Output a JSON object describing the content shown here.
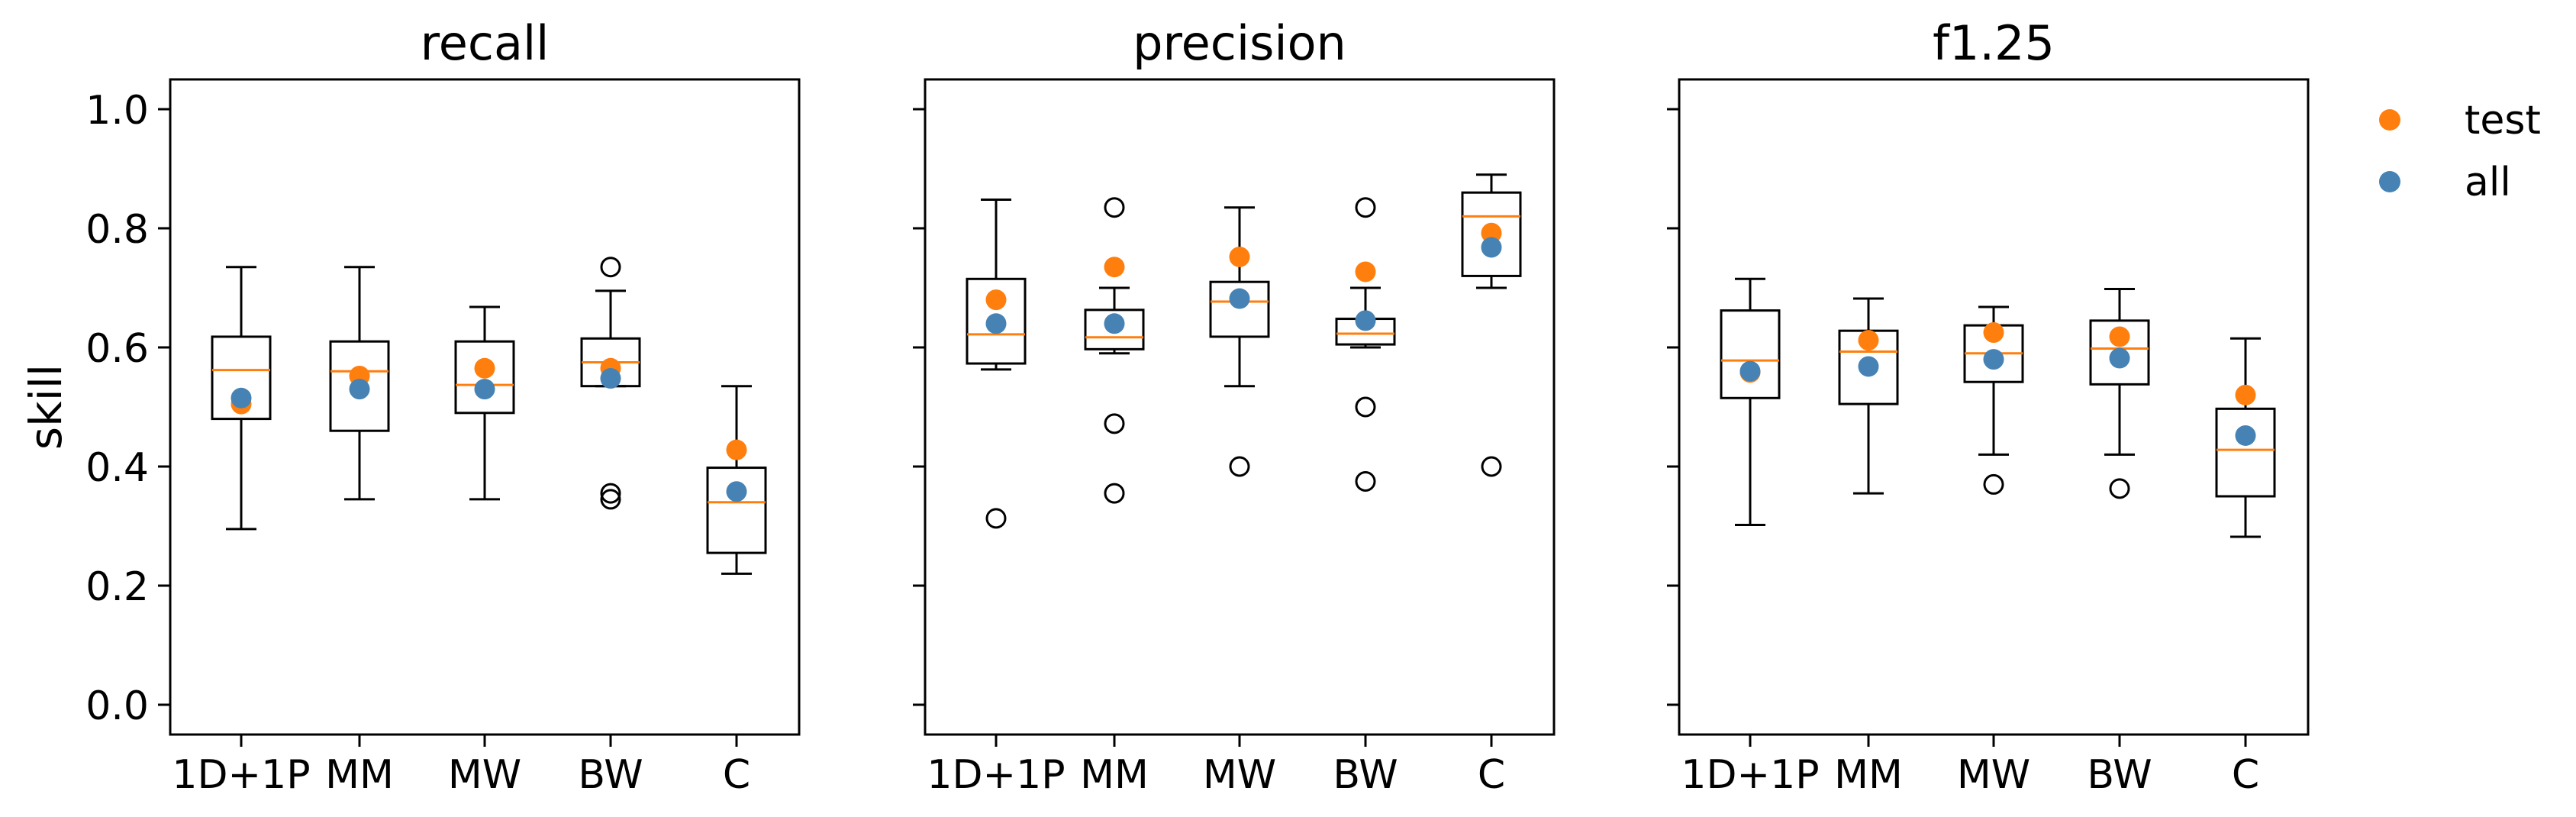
{
  "chart_data": {
    "type": "box",
    "ylabel": "skill",
    "ylim": [
      -0.05,
      1.05
    ],
    "yticks": [
      "0.0",
      "0.2",
      "0.4",
      "0.6",
      "0.8",
      "1.0"
    ],
    "categories": [
      "1D+1P",
      "MM",
      "MW",
      "BW",
      "C"
    ],
    "legend": {
      "placement": "right",
      "entries": [
        {
          "label": "test",
          "color": "#ff7f0e"
        },
        {
          "label": "all",
          "color": "#4682b4"
        }
      ]
    },
    "colors": {
      "median": "#ff7f0e",
      "test": "#ff7f0e",
      "all": "#4682b4",
      "box": "#000000"
    },
    "panels": [
      {
        "title": "recall",
        "boxes": [
          {
            "category": "1D+1P",
            "whislo": 0.295,
            "q1": 0.48,
            "med": 0.562,
            "q3": 0.618,
            "whishi": 0.735,
            "fliers": [],
            "test": 0.505,
            "all": 0.515
          },
          {
            "category": "MM",
            "whislo": 0.345,
            "q1": 0.46,
            "med": 0.56,
            "q3": 0.61,
            "whishi": 0.735,
            "fliers": [],
            "test": 0.552,
            "all": 0.53
          },
          {
            "category": "MW",
            "whislo": 0.345,
            "q1": 0.49,
            "med": 0.537,
            "q3": 0.61,
            "whishi": 0.668,
            "fliers": [],
            "test": 0.565,
            "all": 0.53
          },
          {
            "category": "BW",
            "whislo": 0.535,
            "q1": 0.535,
            "med": 0.575,
            "q3": 0.615,
            "whishi": 0.695,
            "fliers": [
              0.735,
              0.355,
              0.345
            ],
            "test": 0.565,
            "all": 0.548
          },
          {
            "category": "C",
            "whislo": 0.22,
            "q1": 0.255,
            "med": 0.34,
            "q3": 0.398,
            "whishi": 0.535,
            "fliers": [],
            "test": 0.428,
            "all": 0.358
          }
        ]
      },
      {
        "title": "precision",
        "boxes": [
          {
            "category": "1D+1P",
            "whislo": 0.563,
            "q1": 0.573,
            "med": 0.622,
            "q3": 0.715,
            "whishi": 0.848,
            "fliers": [
              0.313
            ],
            "test": 0.68,
            "all": 0.64
          },
          {
            "category": "MM",
            "whislo": 0.59,
            "q1": 0.597,
            "med": 0.617,
            "q3": 0.663,
            "whishi": 0.7,
            "fliers": [
              0.835,
              0.472,
              0.355
            ],
            "test": 0.735,
            "all": 0.64
          },
          {
            "category": "MW",
            "whislo": 0.535,
            "q1": 0.618,
            "med": 0.677,
            "q3": 0.71,
            "whishi": 0.835,
            "fliers": [
              0.4
            ],
            "test": 0.752,
            "all": 0.682
          },
          {
            "category": "BW",
            "whislo": 0.6,
            "q1": 0.605,
            "med": 0.623,
            "q3": 0.648,
            "whishi": 0.7,
            "fliers": [
              0.835,
              0.5,
              0.375
            ],
            "test": 0.727,
            "all": 0.645
          },
          {
            "category": "C",
            "whislo": 0.7,
            "q1": 0.72,
            "med": 0.82,
            "q3": 0.86,
            "whishi": 0.89,
            "fliers": [
              0.4
            ],
            "test": 0.792,
            "all": 0.768
          }
        ]
      },
      {
        "title": "f1.25",
        "boxes": [
          {
            "category": "1D+1P",
            "whislo": 0.302,
            "q1": 0.515,
            "med": 0.578,
            "q3": 0.662,
            "whishi": 0.715,
            "fliers": [],
            "test": 0.558,
            "all": 0.56
          },
          {
            "category": "MM",
            "whislo": 0.355,
            "q1": 0.505,
            "med": 0.593,
            "q3": 0.628,
            "whishi": 0.682,
            "fliers": [],
            "test": 0.612,
            "all": 0.568
          },
          {
            "category": "MW",
            "whislo": 0.42,
            "q1": 0.542,
            "med": 0.59,
            "q3": 0.637,
            "whishi": 0.668,
            "fliers": [
              0.37
            ],
            "test": 0.625,
            "all": 0.58
          },
          {
            "category": "BW",
            "whislo": 0.42,
            "q1": 0.538,
            "med": 0.598,
            "q3": 0.645,
            "whishi": 0.698,
            "fliers": [
              0.363
            ],
            "test": 0.618,
            "all": 0.582
          },
          {
            "category": "C",
            "whislo": 0.282,
            "q1": 0.35,
            "med": 0.428,
            "q3": 0.497,
            "whishi": 0.615,
            "fliers": [],
            "test": 0.52,
            "all": 0.452
          }
        ]
      }
    ]
  }
}
